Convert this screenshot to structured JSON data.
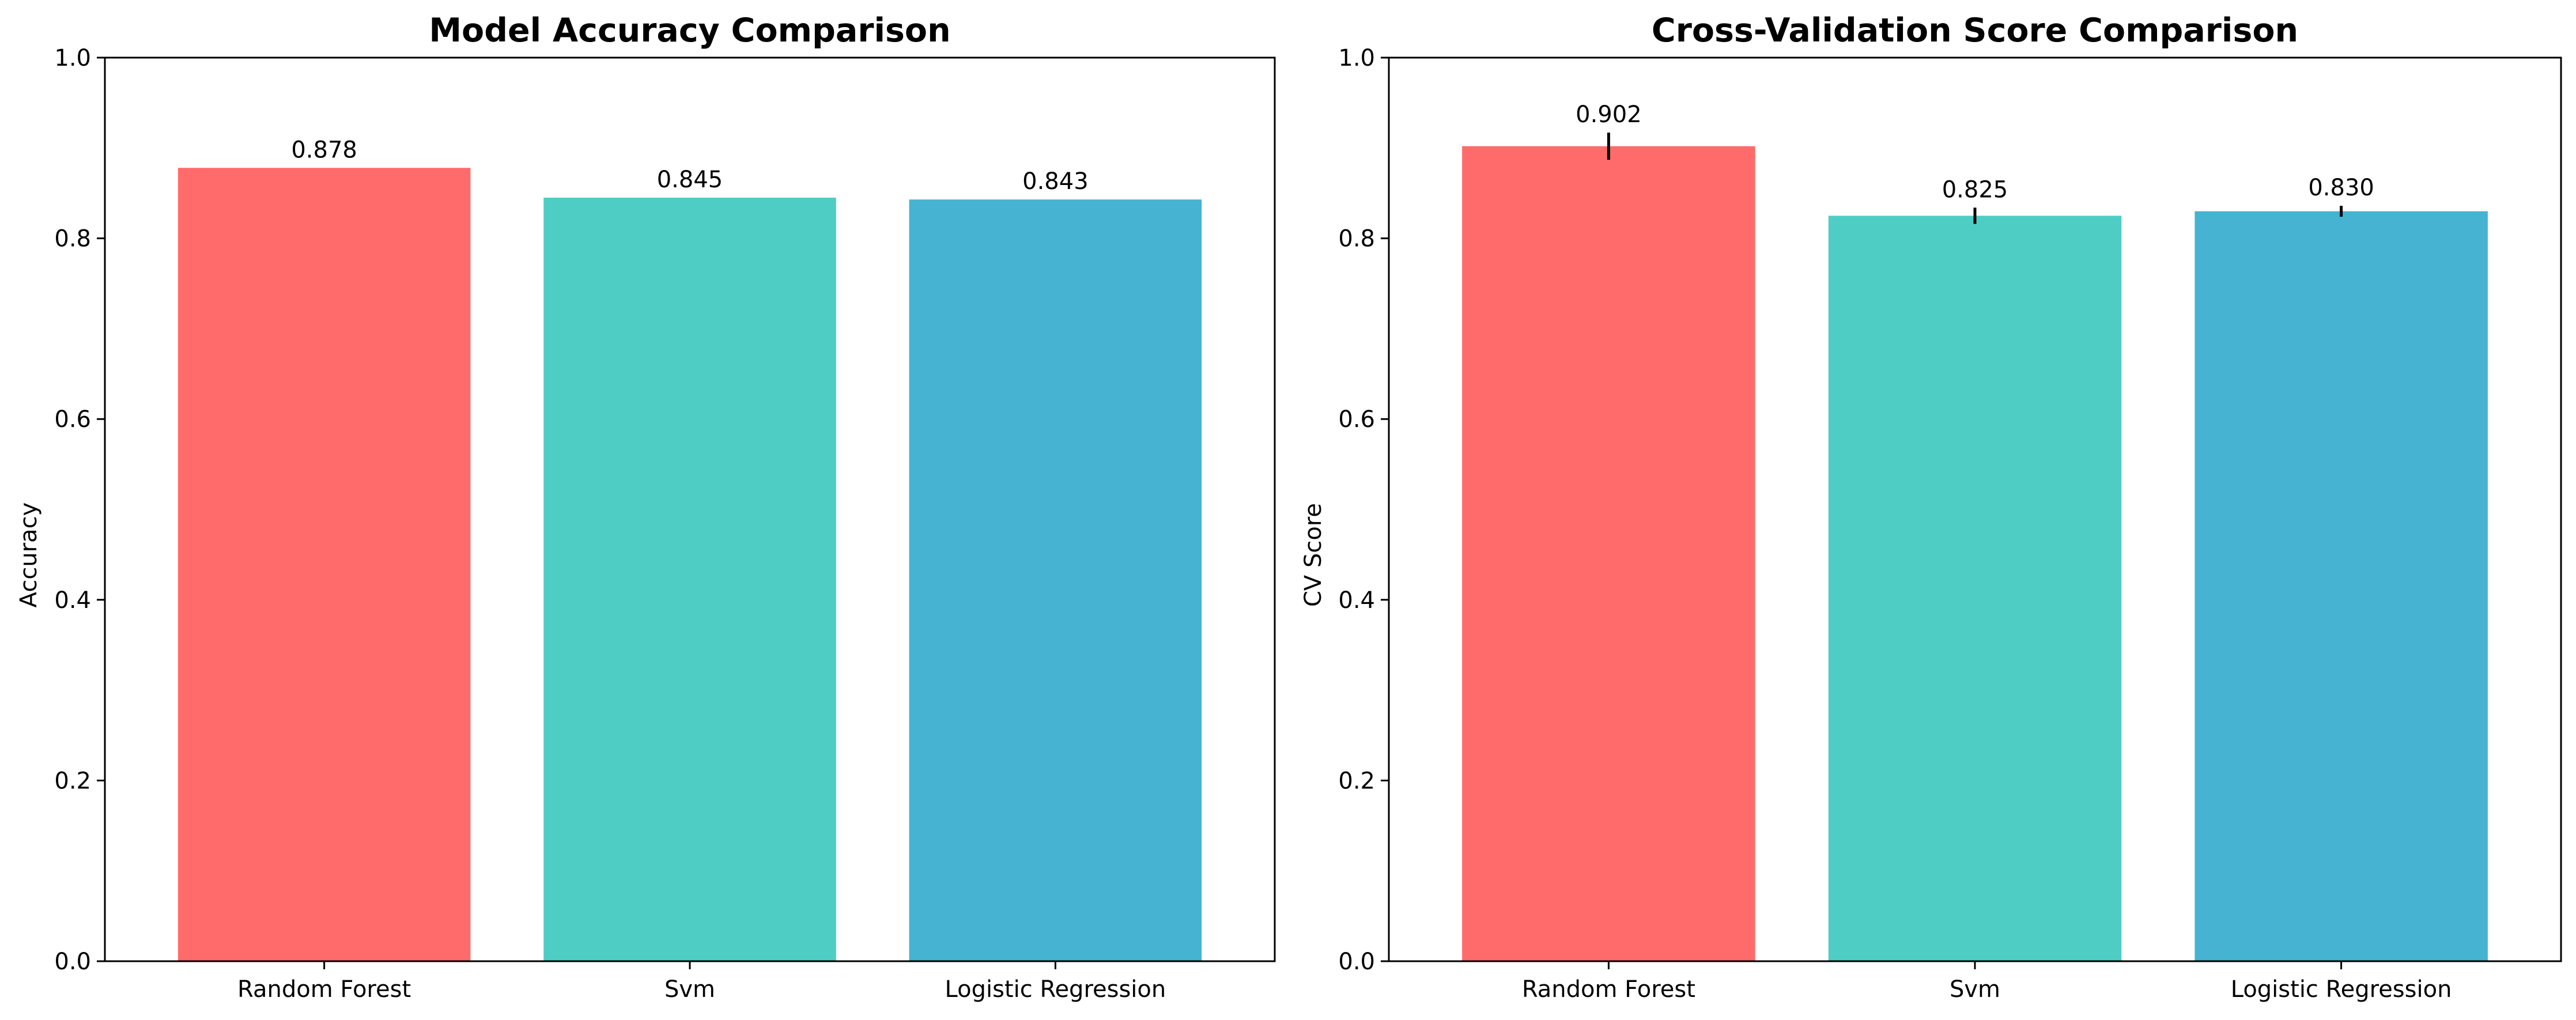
{
  "chart_data": [
    {
      "type": "bar",
      "title": "Model Accuracy Comparison",
      "xlabel": "",
      "ylabel": "Accuracy",
      "categories": [
        "Random Forest",
        "Svm",
        "Logistic Regression"
      ],
      "values": [
        0.878,
        0.845,
        0.843
      ],
      "value_labels": [
        "0.878",
        "0.845",
        "0.843"
      ],
      "colors": [
        "#ff6b6b",
        "#4ecdc4",
        "#45b3d1"
      ],
      "ylim": [
        0,
        1.0
      ],
      "yticks": [
        0.0,
        0.2,
        0.4,
        0.6,
        0.8,
        1.0
      ],
      "ytick_labels": [
        "0.0",
        "0.2",
        "0.4",
        "0.6",
        "0.8",
        "1.0"
      ],
      "grid": false,
      "error_bars": false
    },
    {
      "type": "bar",
      "title": "Cross-Validation Score Comparison",
      "xlabel": "",
      "ylabel": "CV Score",
      "categories": [
        "Random Forest",
        "Svm",
        "Logistic Regression"
      ],
      "values": [
        0.902,
        0.825,
        0.83
      ],
      "value_labels": [
        "0.902",
        "0.825",
        "0.830"
      ],
      "errors": [
        0.015,
        0.009,
        0.006
      ],
      "colors": [
        "#ff6b6b",
        "#4ecdc4",
        "#45b3d1"
      ],
      "ylim": [
        0,
        1.0
      ],
      "yticks": [
        0.0,
        0.2,
        0.4,
        0.6,
        0.8,
        1.0
      ],
      "ytick_labels": [
        "0.0",
        "0.2",
        "0.4",
        "0.6",
        "0.8",
        "1.0"
      ],
      "grid": false,
      "error_bars": true
    }
  ]
}
